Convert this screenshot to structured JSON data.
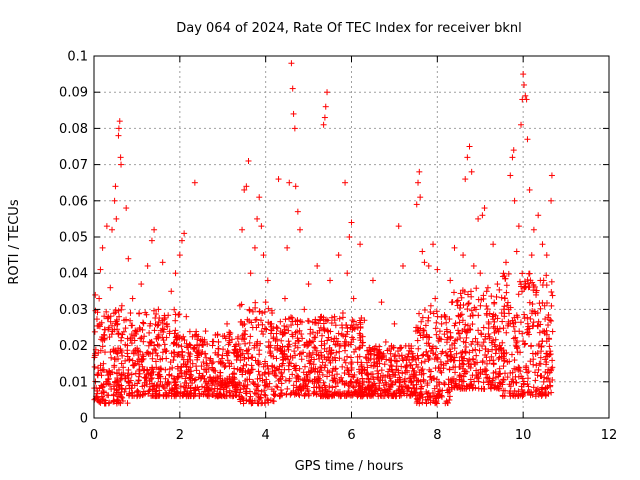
{
  "chart_data": {
    "type": "scatter",
    "title": "Day 064 of 2024, Rate Of TEC Index for receiver bknl",
    "xlabel": "GPS time / hours",
    "ylabel": "ROTI / TECUs",
    "xlim": [
      0,
      12
    ],
    "ylim": [
      0,
      0.1
    ],
    "xticks": [
      "0",
      "2",
      "4",
      "6",
      "8",
      "10",
      "12"
    ],
    "yticks": [
      "0",
      "0.01",
      "0.02",
      "0.03",
      "0.04",
      "0.05",
      "0.06",
      "0.07",
      "0.08",
      "0.09",
      "0.1"
    ],
    "grid": true,
    "marker": "plus",
    "color": "#ff0000",
    "series": [
      {
        "name": "ROTI",
        "points": [
          [
            0.03,
            0.034
          ],
          [
            0.05,
            0.006
          ],
          [
            0.08,
            0.012
          ],
          [
            0.1,
            0.018
          ],
          [
            0.12,
            0.033
          ],
          [
            0.15,
            0.041
          ],
          [
            0.17,
            0.009
          ],
          [
            0.2,
            0.047
          ],
          [
            0.22,
            0.015
          ],
          [
            0.25,
            0.022
          ],
          [
            0.28,
            0.01
          ],
          [
            0.3,
            0.053
          ],
          [
            0.33,
            0.028
          ],
          [
            0.35,
            0.013
          ],
          [
            0.38,
            0.036
          ],
          [
            0.4,
            0.008
          ],
          [
            0.42,
            0.052
          ],
          [
            0.45,
            0.019
          ],
          [
            0.48,
            0.06
          ],
          [
            0.5,
            0.064
          ],
          [
            0.52,
            0.055
          ],
          [
            0.55,
            0.026
          ],
          [
            0.57,
            0.078
          ],
          [
            0.58,
            0.08
          ],
          [
            0.6,
            0.082
          ],
          [
            0.62,
            0.072
          ],
          [
            0.63,
            0.07
          ],
          [
            0.65,
            0.031
          ],
          [
            0.68,
            0.014
          ],
          [
            0.7,
            0.027
          ],
          [
            0.72,
            0.011
          ],
          [
            0.75,
            0.058
          ],
          [
            0.78,
            0.02
          ],
          [
            0.8,
            0.044
          ],
          [
            0.82,
            0.016
          ],
          [
            0.85,
            0.029
          ],
          [
            0.88,
            0.012
          ],
          [
            0.9,
            0.033
          ],
          [
            0.93,
            0.018
          ],
          [
            0.95,
            0.009
          ],
          [
            1.0,
            0.024
          ],
          [
            1.05,
            0.013
          ],
          [
            1.1,
            0.037
          ],
          [
            1.15,
            0.017
          ],
          [
            1.2,
            0.011
          ],
          [
            1.25,
            0.042
          ],
          [
            1.3,
            0.021
          ],
          [
            1.35,
            0.049
          ],
          [
            1.4,
            0.052
          ],
          [
            1.45,
            0.014
          ],
          [
            1.5,
            0.03
          ],
          [
            1.55,
            0.01
          ],
          [
            1.6,
            0.043
          ],
          [
            1.65,
            0.019
          ],
          [
            1.7,
            0.026
          ],
          [
            1.75,
            0.012
          ],
          [
            1.8,
            0.035
          ],
          [
            1.85,
            0.016
          ],
          [
            1.9,
            0.04
          ],
          [
            1.95,
            0.022
          ],
          [
            2.0,
            0.045
          ],
          [
            2.05,
            0.049
          ],
          [
            2.1,
            0.051
          ],
          [
            2.15,
            0.028
          ],
          [
            2.2,
            0.018
          ],
          [
            2.25,
            0.012
          ],
          [
            2.3,
            0.015
          ],
          [
            2.35,
            0.065
          ],
          [
            2.4,
            0.02
          ],
          [
            2.5,
            0.011
          ],
          [
            2.6,
            0.024
          ],
          [
            2.7,
            0.016
          ],
          [
            2.8,
            0.013
          ],
          [
            2.9,
            0.021
          ],
          [
            3.0,
            0.01
          ],
          [
            3.1,
            0.026
          ],
          [
            3.2,
            0.015
          ],
          [
            3.3,
            0.019
          ],
          [
            3.4,
            0.031
          ],
          [
            3.45,
            0.052
          ],
          [
            3.5,
            0.063
          ],
          [
            3.55,
            0.064
          ],
          [
            3.6,
            0.071
          ],
          [
            3.65,
            0.04
          ],
          [
            3.7,
            0.025
          ],
          [
            3.75,
            0.047
          ],
          [
            3.8,
            0.055
          ],
          [
            3.85,
            0.061
          ],
          [
            3.9,
            0.053
          ],
          [
            3.95,
            0.045
          ],
          [
            4.0,
            0.032
          ],
          [
            4.05,
            0.038
          ],
          [
            4.1,
            0.018
          ],
          [
            4.15,
            0.029
          ],
          [
            4.2,
            0.014
          ],
          [
            4.3,
            0.066
          ],
          [
            4.35,
            0.024
          ],
          [
            4.4,
            0.016
          ],
          [
            4.45,
            0.033
          ],
          [
            4.5,
            0.047
          ],
          [
            4.55,
            0.065
          ],
          [
            4.6,
            0.098
          ],
          [
            4.63,
            0.091
          ],
          [
            4.65,
            0.084
          ],
          [
            4.68,
            0.08
          ],
          [
            4.7,
            0.064
          ],
          [
            4.75,
            0.057
          ],
          [
            4.8,
            0.052
          ],
          [
            4.85,
            0.022
          ],
          [
            4.9,
            0.03
          ],
          [
            4.95,
            0.012
          ],
          [
            5.0,
            0.037
          ],
          [
            5.1,
            0.018
          ],
          [
            5.2,
            0.042
          ],
          [
            5.3,
            0.028
          ],
          [
            5.35,
            0.081
          ],
          [
            5.38,
            0.083
          ],
          [
            5.4,
            0.086
          ],
          [
            5.43,
            0.09
          ],
          [
            5.5,
            0.038
          ],
          [
            5.6,
            0.022
          ],
          [
            5.7,
            0.045
          ],
          [
            5.8,
            0.029
          ],
          [
            5.85,
            0.065
          ],
          [
            5.9,
            0.04
          ],
          [
            5.95,
            0.05
          ],
          [
            6.0,
            0.054
          ],
          [
            6.05,
            0.033
          ],
          [
            6.1,
            0.019
          ],
          [
            6.2,
            0.048
          ],
          [
            6.3,
            0.027
          ],
          [
            6.4,
            0.016
          ],
          [
            6.5,
            0.038
          ],
          [
            6.6,
            0.013
          ],
          [
            6.7,
            0.032
          ],
          [
            6.8,
            0.021
          ],
          [
            6.9,
            0.011
          ],
          [
            7.0,
            0.026
          ],
          [
            7.1,
            0.053
          ],
          [
            7.2,
            0.042
          ],
          [
            7.3,
            0.017
          ],
          [
            7.4,
            0.01
          ],
          [
            7.5,
            0.024
          ],
          [
            7.52,
            0.059
          ],
          [
            7.55,
            0.065
          ],
          [
            7.58,
            0.068
          ],
          [
            7.6,
            0.061
          ],
          [
            7.65,
            0.046
          ],
          [
            7.7,
            0.043
          ],
          [
            7.75,
            0.023
          ],
          [
            7.8,
            0.042
          ],
          [
            7.85,
            0.031
          ],
          [
            7.9,
            0.048
          ],
          [
            7.95,
            0.033
          ],
          [
            8.0,
            0.041
          ],
          [
            8.1,
            0.026
          ],
          [
            8.2,
            0.018
          ],
          [
            8.3,
            0.038
          ],
          [
            8.4,
            0.047
          ],
          [
            8.5,
            0.028
          ],
          [
            8.6,
            0.045
          ],
          [
            8.65,
            0.066
          ],
          [
            8.7,
            0.072
          ],
          [
            8.75,
            0.075
          ],
          [
            8.8,
            0.068
          ],
          [
            8.85,
            0.042
          ],
          [
            8.9,
            0.03
          ],
          [
            8.95,
            0.055
          ],
          [
            9.0,
            0.04
          ],
          [
            9.05,
            0.056
          ],
          [
            9.1,
            0.058
          ],
          [
            9.15,
            0.035
          ],
          [
            9.2,
            0.026
          ],
          [
            9.3,
            0.048
          ],
          [
            9.4,
            0.037
          ],
          [
            9.5,
            0.029
          ],
          [
            9.6,
            0.043
          ],
          [
            9.7,
            0.067
          ],
          [
            9.75,
            0.072
          ],
          [
            9.78,
            0.074
          ],
          [
            9.8,
            0.06
          ],
          [
            9.85,
            0.046
          ],
          [
            9.9,
            0.053
          ],
          [
            9.95,
            0.081
          ],
          [
            9.98,
            0.088
          ],
          [
            10.0,
            0.095
          ],
          [
            10.02,
            0.092
          ],
          [
            10.05,
            0.089
          ],
          [
            10.08,
            0.088
          ],
          [
            10.1,
            0.077
          ],
          [
            10.15,
            0.063
          ],
          [
            10.2,
            0.045
          ],
          [
            10.25,
            0.052
          ],
          [
            10.3,
            0.034
          ],
          [
            10.35,
            0.056
          ],
          [
            10.4,
            0.038
          ],
          [
            10.45,
            0.048
          ],
          [
            10.5,
            0.031
          ],
          [
            10.55,
            0.045
          ],
          [
            10.6,
            0.022
          ],
          [
            10.65,
            0.06
          ],
          [
            10.67,
            0.067
          ],
          [
            10.68,
            0.014
          ]
        ]
      }
    ],
    "background_cloud": [
      {
        "x0": 0.0,
        "x1": 0.8,
        "lo": 0.004,
        "hi": 0.03
      },
      {
        "x0": 0.8,
        "x1": 2.0,
        "lo": 0.006,
        "hi": 0.03
      },
      {
        "x0": 2.0,
        "x1": 3.4,
        "lo": 0.006,
        "hi": 0.024
      },
      {
        "x0": 3.4,
        "x1": 4.2,
        "lo": 0.004,
        "hi": 0.032
      },
      {
        "x0": 4.2,
        "x1": 6.3,
        "lo": 0.006,
        "hi": 0.028
      },
      {
        "x0": 6.3,
        "x1": 7.5,
        "lo": 0.006,
        "hi": 0.02
      },
      {
        "x0": 7.5,
        "x1": 8.3,
        "lo": 0.004,
        "hi": 0.03
      },
      {
        "x0": 8.3,
        "x1": 9.5,
        "lo": 0.008,
        "hi": 0.036
      },
      {
        "x0": 9.5,
        "x1": 10.7,
        "lo": 0.006,
        "hi": 0.04
      }
    ]
  }
}
